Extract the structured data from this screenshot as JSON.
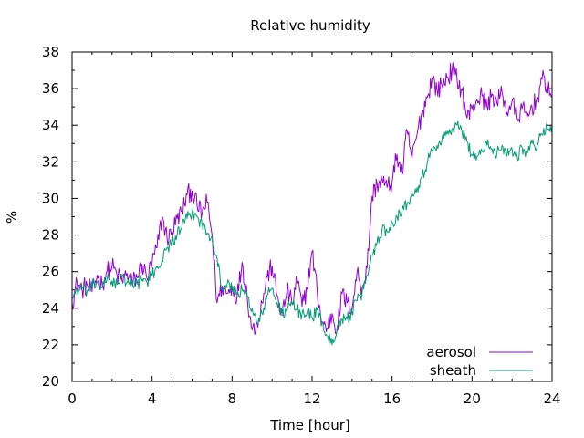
{
  "chart_data": {
    "type": "line",
    "title": "Relative humidity",
    "xlabel": "Time [hour]",
    "ylabel": "%",
    "xlim": [
      0,
      24
    ],
    "ylim": [
      20,
      38
    ],
    "xticks": [
      0,
      4,
      8,
      12,
      16,
      20,
      24
    ],
    "yticks": [
      20,
      22,
      24,
      26,
      28,
      30,
      32,
      34,
      36,
      38
    ],
    "grid": false,
    "legend_position": "bottom-right",
    "series": [
      {
        "name": "aerosol",
        "color": "#9400d3",
        "x": [
          0,
          0.25,
          0.5,
          0.75,
          1,
          1.25,
          1.5,
          1.75,
          2,
          2.25,
          2.5,
          2.75,
          3,
          3.25,
          3.5,
          3.75,
          4,
          4.25,
          4.5,
          4.75,
          5,
          5.25,
          5.5,
          5.75,
          6,
          6.25,
          6.5,
          6.75,
          7,
          7.25,
          7.5,
          7.75,
          8,
          8.25,
          8.5,
          8.75,
          9,
          9.25,
          9.5,
          9.75,
          10,
          10.25,
          10.5,
          10.75,
          11,
          11.25,
          11.5,
          11.75,
          12,
          12.25,
          12.5,
          12.75,
          13,
          13.25,
          13.5,
          13.75,
          14,
          14.25,
          14.5,
          14.75,
          15,
          15.25,
          15.5,
          15.75,
          16,
          16.25,
          16.5,
          16.75,
          17,
          17.25,
          17.5,
          17.75,
          18,
          18.25,
          18.5,
          18.75,
          19,
          19.25,
          19.5,
          19.75,
          20,
          20.25,
          20.5,
          20.75,
          21,
          21.25,
          21.5,
          21.75,
          22,
          22.25,
          22.5,
          22.75,
          23,
          23.25,
          23.5,
          23.75,
          24
        ],
        "y": [
          24.3,
          25.4,
          25.0,
          25.3,
          24.9,
          25.8,
          25.3,
          26.0,
          26.3,
          25.8,
          25.5,
          25.9,
          25.4,
          25.7,
          26.4,
          25.6,
          26.5,
          27.3,
          29.0,
          27.8,
          28.2,
          28.9,
          29.3,
          30.2,
          30.4,
          29.6,
          29.2,
          29.8,
          28.0,
          24.3,
          25.2,
          24.8,
          25.2,
          24.6,
          26.5,
          24.7,
          22.8,
          23.2,
          24.3,
          25.7,
          26.3,
          24.7,
          23.6,
          25.0,
          24.2,
          25.6,
          24.1,
          25.1,
          27.1,
          25.0,
          23.2,
          22.9,
          23.7,
          22.8,
          24.8,
          24.3,
          24.0,
          26.0,
          25.1,
          26.2,
          30.1,
          30.8,
          31.0,
          30.6,
          30.9,
          32.4,
          31.3,
          33.7,
          32.2,
          33.5,
          34.7,
          35.5,
          36.6,
          35.9,
          36.2,
          36.6,
          37.0,
          36.5,
          35.9,
          34.4,
          34.9,
          35.4,
          35.6,
          35.0,
          35.7,
          35.2,
          35.8,
          34.7,
          35.3,
          34.4,
          34.9,
          34.4,
          35.0,
          35.4,
          36.5,
          36.2,
          35.6
        ],
        "style": "jagged"
      },
      {
        "name": "sheath",
        "color": "#009e73",
        "x": [
          0,
          0.25,
          0.5,
          0.75,
          1,
          1.25,
          1.5,
          1.75,
          2,
          2.25,
          2.5,
          2.75,
          3,
          3.25,
          3.5,
          3.75,
          4,
          4.25,
          4.5,
          4.75,
          5,
          5.25,
          5.5,
          5.75,
          6,
          6.25,
          6.5,
          6.75,
          7,
          7.25,
          7.5,
          7.75,
          8,
          8.25,
          8.5,
          8.75,
          9,
          9.25,
          9.5,
          9.75,
          10,
          10.25,
          10.5,
          10.75,
          11,
          11.25,
          11.5,
          11.75,
          12,
          12.25,
          12.5,
          12.75,
          13,
          13.25,
          13.5,
          13.75,
          14,
          14.25,
          14.5,
          14.75,
          15,
          15.25,
          15.5,
          15.75,
          16,
          16.25,
          16.5,
          16.75,
          17,
          17.25,
          17.5,
          17.75,
          18,
          18.25,
          18.5,
          18.75,
          19,
          19.25,
          19.5,
          19.75,
          20,
          20.25,
          20.5,
          20.75,
          21,
          21.25,
          21.5,
          21.75,
          22,
          22.25,
          22.5,
          22.75,
          23,
          23.25,
          23.5,
          23.75,
          24
        ],
        "y": [
          24.6,
          25.0,
          25.1,
          24.9,
          25.2,
          25.4,
          25.1,
          25.6,
          25.5,
          25.3,
          25.7,
          25.4,
          25.5,
          25.3,
          25.6,
          25.4,
          25.8,
          26.3,
          26.6,
          27.3,
          27.6,
          28.0,
          28.5,
          28.9,
          29.2,
          29.0,
          28.6,
          28.1,
          27.9,
          26.7,
          25.0,
          25.3,
          25.1,
          24.8,
          25.0,
          24.6,
          24.0,
          23.1,
          23.7,
          24.7,
          25.1,
          24.3,
          23.7,
          23.9,
          24.3,
          23.9,
          23.7,
          23.8,
          23.5,
          23.9,
          23.2,
          22.5,
          22.0,
          23.0,
          23.4,
          23.4,
          23.8,
          24.4,
          24.8,
          25.8,
          26.9,
          27.6,
          28.3,
          28.2,
          28.7,
          29.0,
          29.4,
          29.7,
          30.3,
          30.6,
          31.2,
          31.9,
          32.6,
          32.9,
          33.3,
          33.5,
          33.8,
          34.0,
          33.6,
          33.1,
          32.4,
          32.3,
          32.6,
          32.9,
          32.7,
          32.5,
          32.9,
          32.4,
          32.7,
          32.3,
          32.8,
          32.5,
          33.0,
          32.9,
          33.5,
          33.9,
          34.0
        ],
        "style": "jagged"
      }
    ]
  }
}
